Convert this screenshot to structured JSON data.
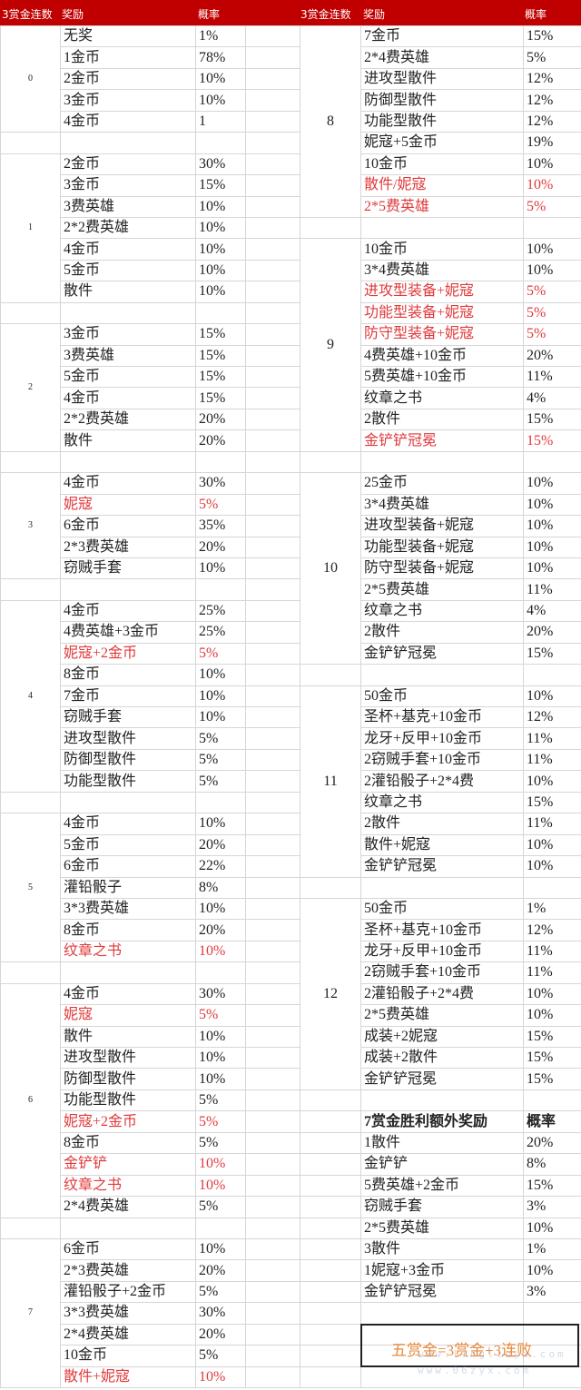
{
  "header": {
    "left_streak": "3赏金连数",
    "left_reward": "奖励",
    "left_rate": "概率",
    "right_streak": "3赏金连数",
    "right_reward": "奖励",
    "right_rate": "概率",
    "color": "#c00000"
  },
  "accent_red": "#e0393b",
  "left": {
    "groups": [
      {
        "streak": "0",
        "rows": [
          {
            "reward": "无奖",
            "rate": "1%"
          },
          {
            "reward": "1金币",
            "rate": "78%"
          },
          {
            "reward": "2金币",
            "rate": "10%"
          },
          {
            "reward": "3金币",
            "rate": "10%"
          },
          {
            "reward": "4金币",
            "rate": "1"
          }
        ]
      },
      {
        "streak": "1",
        "rows": [
          {
            "reward": "2金币",
            "rate": "30%"
          },
          {
            "reward": "3金币",
            "rate": "15%"
          },
          {
            "reward": "3费英雄",
            "rate": "10%"
          },
          {
            "reward": "2*2费英雄",
            "rate": "10%"
          },
          {
            "reward": "4金币",
            "rate": "10%"
          },
          {
            "reward": "5金币",
            "rate": "10%"
          },
          {
            "reward": "散件",
            "rate": "10%"
          }
        ]
      },
      {
        "streak": "2",
        "rows": [
          {
            "reward": "3金币",
            "rate": "15%"
          },
          {
            "reward": "3费英雄",
            "rate": "15%"
          },
          {
            "reward": "5金币",
            "rate": "15%"
          },
          {
            "reward": "4金币",
            "rate": "15%"
          },
          {
            "reward": "2*2费英雄",
            "rate": "20%"
          },
          {
            "reward": "散件",
            "rate": "20%"
          }
        ]
      },
      {
        "streak": "3",
        "rows": [
          {
            "reward": "4金币",
            "rate": "30%"
          },
          {
            "reward": "妮寇",
            "rate": "5%",
            "red": true
          },
          {
            "reward": "6金币",
            "rate": "35%"
          },
          {
            "reward": "2*3费英雄",
            "rate": "20%"
          },
          {
            "reward": "窃贼手套",
            "rate": "10%"
          }
        ]
      },
      {
        "streak": "4",
        "rows": [
          {
            "reward": "4金币",
            "rate": "25%"
          },
          {
            "reward": "4费英雄+3金币",
            "rate": "25%"
          },
          {
            "reward": "妮寇+2金币",
            "rate": "5%",
            "red": true
          },
          {
            "reward": "8金币",
            "rate": "10%"
          },
          {
            "reward": "7金币",
            "rate": "10%"
          },
          {
            "reward": "窃贼手套",
            "rate": "10%"
          },
          {
            "reward": "进攻型散件",
            "rate": "5%"
          },
          {
            "reward": "防御型散件",
            "rate": "5%"
          },
          {
            "reward": "功能型散件",
            "rate": "5%"
          }
        ]
      },
      {
        "streak": "5",
        "rows": [
          {
            "reward": "4金币",
            "rate": "10%"
          },
          {
            "reward": "5金币",
            "rate": "20%"
          },
          {
            "reward": "6金币",
            "rate": "22%"
          },
          {
            "reward": "灌铅骰子",
            "rate": "8%"
          },
          {
            "reward": "3*3费英雄",
            "rate": "10%"
          },
          {
            "reward": "8金币",
            "rate": "20%"
          },
          {
            "reward": "纹章之书",
            "rate": "10%",
            "red": true
          }
        ]
      },
      {
        "streak": "6",
        "rows": [
          {
            "reward": "4金币",
            "rate": "30%"
          },
          {
            "reward": "妮寇",
            "rate": "5%",
            "red": true
          },
          {
            "reward": "散件",
            "rate": "10%"
          },
          {
            "reward": "进攻型散件",
            "rate": "10%"
          },
          {
            "reward": "防御型散件",
            "rate": "10%"
          },
          {
            "reward": "功能型散件",
            "rate": "5%"
          },
          {
            "reward": "妮寇+2金币",
            "rate": "5%",
            "red": true
          },
          {
            "reward": "8金币",
            "rate": "5%"
          },
          {
            "reward": "金铲铲",
            "rate": "10%",
            "red": true
          },
          {
            "reward": "纹章之书",
            "rate": "10%",
            "red": true
          },
          {
            "reward": "2*4费英雄",
            "rate": "5%"
          }
        ]
      },
      {
        "streak": "7",
        "rows": [
          {
            "reward": "6金币",
            "rate": "10%"
          },
          {
            "reward": "2*3费英雄",
            "rate": "20%"
          },
          {
            "reward": "灌铅骰子+2金币",
            "rate": "5%"
          },
          {
            "reward": "3*3费英雄",
            "rate": "30%"
          },
          {
            "reward": "2*4费英雄",
            "rate": "20%"
          },
          {
            "reward": "10金币",
            "rate": "5%"
          },
          {
            "reward": "散件+妮寇",
            "rate": "10%",
            "red": true
          }
        ]
      }
    ]
  },
  "right": {
    "groups": [
      {
        "streak": "8",
        "rows": [
          {
            "reward": "7金币",
            "rate": "15%"
          },
          {
            "reward": "2*4费英雄",
            "rate": "5%"
          },
          {
            "reward": "进攻型散件",
            "rate": "12%"
          },
          {
            "reward": "防御型散件",
            "rate": "12%"
          },
          {
            "reward": "功能型散件",
            "rate": "12%"
          },
          {
            "reward": "妮寇+5金币",
            "rate": "19%"
          },
          {
            "reward": "10金币",
            "rate": "10%"
          },
          {
            "reward": "散件/妮寇",
            "rate": "10%",
            "red": true
          },
          {
            "reward": "2*5费英雄",
            "rate": "5%",
            "red": true
          }
        ]
      },
      {
        "streak": "9",
        "rows": [
          {
            "reward": "10金币",
            "rate": "10%"
          },
          {
            "reward": "3*4费英雄",
            "rate": "10%"
          },
          {
            "reward": "进攻型装备+妮寇",
            "rate": "5%",
            "red": true
          },
          {
            "reward": "功能型装备+妮寇",
            "rate": "5%",
            "red": true
          },
          {
            "reward": "防守型装备+妮寇",
            "rate": "5%",
            "red": true
          },
          {
            "reward": "4费英雄+10金币",
            "rate": "20%"
          },
          {
            "reward": "5费英雄+10金币",
            "rate": "11%"
          },
          {
            "reward": "纹章之书",
            "rate": "4%"
          },
          {
            "reward": "2散件",
            "rate": "15%"
          },
          {
            "reward": "金铲铲冠冕",
            "rate": "15%",
            "red": true
          }
        ]
      },
      {
        "streak": "10",
        "rows": [
          {
            "reward": "25金币",
            "rate": "10%"
          },
          {
            "reward": "3*4费英雄",
            "rate": "10%"
          },
          {
            "reward": "进攻型装备+妮寇",
            "rate": "10%"
          },
          {
            "reward": "功能型装备+妮寇",
            "rate": "10%"
          },
          {
            "reward": "防守型装备+妮寇",
            "rate": "10%"
          },
          {
            "reward": "2*5费英雄",
            "rate": "11%"
          },
          {
            "reward": "纹章之书",
            "rate": "4%"
          },
          {
            "reward": "2散件",
            "rate": "20%"
          },
          {
            "reward": "金铲铲冠冕",
            "rate": "15%"
          }
        ]
      },
      {
        "streak": "11",
        "rows": [
          {
            "reward": "50金币",
            "rate": "10%"
          },
          {
            "reward": "圣杯+基克+10金币",
            "rate": "12%"
          },
          {
            "reward": "龙牙+反甲+10金币",
            "rate": "11%"
          },
          {
            "reward": "2窃贼手套+10金币",
            "rate": "11%"
          },
          {
            "reward": "2灌铅骰子+2*4费",
            "rate": "10%"
          },
          {
            "reward": "纹章之书",
            "rate": "15%"
          },
          {
            "reward": "2散件",
            "rate": "11%"
          },
          {
            "reward": "散件+妮寇",
            "rate": "10%"
          },
          {
            "reward": "金铲铲冠冕",
            "rate": "10%"
          }
        ]
      },
      {
        "streak": "12",
        "rows": [
          {
            "reward": "50金币",
            "rate": "1%"
          },
          {
            "reward": "圣杯+基克+10金币",
            "rate": "12%"
          },
          {
            "reward": "龙牙+反甲+10金币",
            "rate": "11%"
          },
          {
            "reward": "2窃贼手套+10金币",
            "rate": "11%"
          },
          {
            "reward": "2灌铅骰子+2*4费",
            "rate": "10%"
          },
          {
            "reward": "2*5费英雄",
            "rate": "10%"
          },
          {
            "reward": "成装+2妮寇",
            "rate": "15%"
          },
          {
            "reward": "成装+2散件",
            "rate": "15%"
          },
          {
            "reward": "金铲铲冠冕",
            "rate": "15%"
          }
        ]
      }
    ]
  },
  "bonus": {
    "title": "7赏金胜利额外奖励",
    "rate_label": "概率",
    "rows": [
      {
        "reward": "1散件",
        "rate": "20%"
      },
      {
        "reward": "金铲铲",
        "rate": "8%"
      },
      {
        "reward": "5费英雄+2金币",
        "rate": "15%"
      },
      {
        "reward": "窃贼手套",
        "rate": "3%"
      },
      {
        "reward": "2*5费英雄",
        "rate": "10%"
      },
      {
        "reward": "3散件",
        "rate": "1%"
      },
      {
        "reward": "1妮寇+3金币",
        "rate": "10%"
      },
      {
        "reward": "金铲铲冠冕",
        "rate": "3%"
      }
    ]
  },
  "note": {
    "text": "五赏金=3赏金+3连败",
    "color": "#e8893a"
  },
  "watermark": {
    "line1": "www.lingliuyx.com",
    "line2": "www.06zyx.com"
  }
}
